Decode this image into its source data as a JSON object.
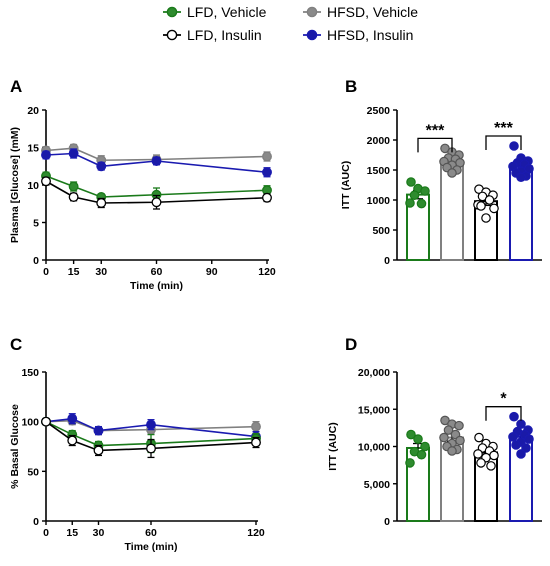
{
  "legend": [
    {
      "label": "LFD, Vehicle",
      "color": "#1a7a1a",
      "fill": "#2e8b2e"
    },
    {
      "label": "HFSD, Vehicle",
      "color": "#808080",
      "fill": "#8a8a8a"
    },
    {
      "label": "LFD, Insulin",
      "color": "#000000",
      "fill": "#ffffff"
    },
    {
      "label": "HFSD, Insulin",
      "color": "#1a1ab0",
      "fill": "#1a1aa8"
    }
  ],
  "chart_data": [
    {
      "panel": "A",
      "type": "line",
      "xlabel": "Time (min)",
      "ylabel": "Plasma [Glucose] (mM)",
      "x": [
        0,
        15,
        30,
        60,
        120
      ],
      "xticks": [
        "0",
        "15",
        "30",
        "60",
        "90",
        "120"
      ],
      "xtick_values": [
        0,
        15,
        30,
        60,
        90,
        120
      ],
      "yticks": [
        "0",
        "5",
        "10",
        "15",
        "20"
      ],
      "xlim": [
        0,
        120
      ],
      "ylim": [
        0,
        20
      ],
      "series": [
        {
          "name": "HFSD, Vehicle",
          "values": [
            14.6,
            14.9,
            13.3,
            13.4,
            13.8
          ],
          "err": [
            0.5,
            0.5,
            0.6,
            0.6,
            0.6
          ]
        },
        {
          "name": "HFSD, Insulin",
          "values": [
            14.0,
            14.2,
            12.5,
            13.2,
            11.7
          ],
          "err": [
            0.5,
            0.6,
            0.5,
            0.5,
            0.6
          ]
        },
        {
          "name": "LFD, Vehicle",
          "values": [
            11.2,
            9.8,
            8.4,
            8.7,
            9.3
          ],
          "err": [
            0.5,
            0.6,
            0.4,
            0.9,
            0.6
          ]
        },
        {
          "name": "LFD, Insulin",
          "values": [
            10.5,
            8.4,
            7.6,
            7.7,
            8.3
          ],
          "err": [
            0.5,
            0.5,
            0.6,
            0.9,
            0.5
          ]
        }
      ]
    },
    {
      "panel": "B",
      "type": "bar",
      "ylabel": "ITT (AUC)",
      "yticks": [
        "0",
        "500",
        "1000",
        "1500",
        "2000",
        "2500"
      ],
      "ylim": [
        0,
        2500
      ],
      "categories": [
        "LFD, Vehicle",
        "HFSD, Vehicle",
        "LFD, Insulin",
        "HFSD, Insulin"
      ],
      "values": [
        1090,
        1650,
        980,
        1560
      ],
      "err": [
        70,
        50,
        70,
        50
      ],
      "points": [
        [
          1300,
          1190,
          1150,
          1080,
          940,
          950
        ],
        [
          1860,
          1800,
          1750,
          1700,
          1680,
          1640,
          1620,
          1580,
          1540,
          1500,
          1450
        ],
        [
          1180,
          1130,
          1080,
          1060,
          1000,
          920,
          860,
          700,
          900
        ],
        [
          1900,
          1700,
          1650,
          1620,
          1600,
          1560,
          1520,
          1480,
          1450,
          1400,
          1380
        ]
      ],
      "significance": [
        {
          "between": [
            0,
            1
          ],
          "label": "***"
        },
        {
          "between": [
            2,
            3
          ],
          "label": "***"
        }
      ]
    },
    {
      "panel": "C",
      "type": "line",
      "xlabel": "Time (min)",
      "ylabel": "% Basal Glucose",
      "x": [
        0,
        15,
        30,
        60,
        120
      ],
      "xticks": [
        "0",
        "15",
        "30",
        "60",
        "120"
      ],
      "xtick_values": [
        0,
        15,
        30,
        60,
        120
      ],
      "yticks": [
        "0",
        "50",
        "100",
        "150"
      ],
      "xlim": [
        0,
        120
      ],
      "ylim": [
        0,
        150
      ],
      "series": [
        {
          "name": "HFSD, Vehicle",
          "values": [
            100,
            101,
            91,
            92,
            95
          ],
          "err": [
            2,
            4,
            4,
            4,
            5
          ]
        },
        {
          "name": "HFSD, Insulin",
          "values": [
            100,
            103,
            91,
            97,
            85
          ],
          "err": [
            2,
            5,
            4,
            5,
            5
          ]
        },
        {
          "name": "LFD, Vehicle",
          "values": [
            100,
            87,
            76,
            78,
            83
          ],
          "err": [
            2,
            4,
            4,
            9,
            5
          ]
        },
        {
          "name": "LFD, Insulin",
          "values": [
            100,
            81,
            71,
            73,
            79
          ],
          "err": [
            2,
            5,
            5,
            9,
            5
          ]
        }
      ]
    },
    {
      "panel": "D",
      "type": "bar",
      "ylabel": "ITT (AUC)",
      "yticks": [
        "0",
        "5,000",
        "10,000",
        "15,000",
        "20,000"
      ],
      "ylim": [
        0,
        20000
      ],
      "categories": [
        "LFD, Vehicle",
        "HFSD, Vehicle",
        "LFD, Insulin",
        "HFSD, Insulin"
      ],
      "values": [
        9800,
        11200,
        9200,
        11300
      ],
      "err": [
        600,
        500,
        600,
        600
      ],
      "points": [
        [
          11600,
          11000,
          10000,
          9300,
          8900,
          7800
        ],
        [
          13500,
          13000,
          12800,
          12200,
          11600,
          11200,
          10800,
          10400,
          10000,
          9600,
          9400
        ],
        [
          11200,
          10400,
          10000,
          9800,
          9400,
          9000,
          8800,
          8500,
          7800,
          7400
        ],
        [
          14000,
          13000,
          12200,
          12000,
          11600,
          11300,
          11000,
          10600,
          10200,
          9800,
          9000
        ]
      ],
      "significance": [
        {
          "between": [
            2,
            3
          ],
          "label": "*"
        }
      ]
    }
  ]
}
